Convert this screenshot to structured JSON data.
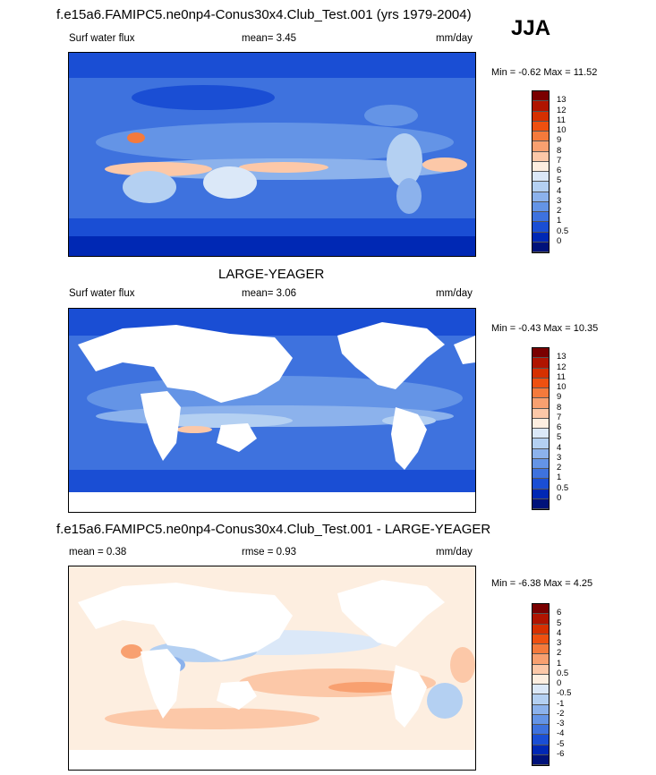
{
  "season": "JJA",
  "panels": [
    {
      "title": "f.e15a6.FAMIPC5.ne0np4-Conus30x4.Club_Test.001 (yrs 1979-2004)",
      "left_label": "Surf water flux",
      "mid_label": "mean=   3.45",
      "units": "mm/day",
      "minmax": "Min =  -0.62 Max =  11.52"
    },
    {
      "title": "LARGE-YEAGER",
      "left_label": "Surf water flux",
      "mid_label": "mean=   3.06",
      "units": "mm/day",
      "minmax": "Min =  -0.43 Max =  10.35"
    },
    {
      "title": "f.e15a6.FAMIPC5.ne0np4-Conus30x4.Club_Test.001 - LARGE-YEAGER",
      "left_label": "mean =   0.38",
      "mid_label": "rmse =   0.93",
      "units": "mm/day",
      "minmax": "Min =  -6.38 Max =    4.25"
    }
  ],
  "chart_data": [
    {
      "type": "heatmap",
      "title": "f.e15a6.FAMIPC5.ne0np4-Conus30x4.Club_Test.001 (yrs 1979-2004)",
      "variable": "Surf water flux",
      "units": "mm/day",
      "mean": 3.45,
      "min": -0.62,
      "max": 11.52,
      "colorbar_levels": [
        "13",
        "12",
        "11",
        "10",
        "9",
        "8",
        "7",
        "6",
        "5",
        "4",
        "3",
        "2",
        "1",
        "0.5",
        "0"
      ],
      "colorbar_colors": [
        "#7a0000",
        "#b01400",
        "#d63000",
        "#ee5010",
        "#f47a3c",
        "#f8a070",
        "#fcc8a8",
        "#fdeee0",
        "#dbe8f8",
        "#b4d0f2",
        "#8cb2ec",
        "#6494e6",
        "#3e72de",
        "#1a4ed4",
        "#0028b4",
        "#00127a"
      ]
    },
    {
      "type": "heatmap",
      "title": "LARGE-YEAGER",
      "variable": "Surf water flux",
      "units": "mm/day",
      "mean": 3.06,
      "min": -0.43,
      "max": 10.35,
      "colorbar_levels": [
        "13",
        "12",
        "11",
        "10",
        "9",
        "8",
        "7",
        "6",
        "5",
        "4",
        "3",
        "2",
        "1",
        "0.5",
        "0"
      ],
      "colorbar_colors": [
        "#7a0000",
        "#b01400",
        "#d63000",
        "#ee5010",
        "#f47a3c",
        "#f8a070",
        "#fcc8a8",
        "#fdeee0",
        "#dbe8f8",
        "#b4d0f2",
        "#8cb2ec",
        "#6494e6",
        "#3e72de",
        "#1a4ed4",
        "#0028b4",
        "#00127a"
      ]
    },
    {
      "type": "heatmap",
      "title": "f.e15a6.FAMIPC5.ne0np4-Conus30x4.Club_Test.001 - LARGE-YEAGER",
      "units": "mm/day",
      "mean": 0.38,
      "rmse": 0.93,
      "min": -6.38,
      "max": 4.25,
      "colorbar_levels": [
        "6",
        "5",
        "4",
        "3",
        "2",
        "1",
        "0.5",
        "0",
        "-0.5",
        "-1",
        "-2",
        "-3",
        "-4",
        "-5",
        "-6"
      ],
      "colorbar_colors": [
        "#7a0000",
        "#b01400",
        "#d63000",
        "#ee5010",
        "#f47a3c",
        "#f8a070",
        "#fcc8a8",
        "#fdeee0",
        "#dbe8f8",
        "#b4d0f2",
        "#8cb2ec",
        "#6494e6",
        "#3e72de",
        "#1a4ed4",
        "#0028b4",
        "#00127a"
      ]
    }
  ]
}
